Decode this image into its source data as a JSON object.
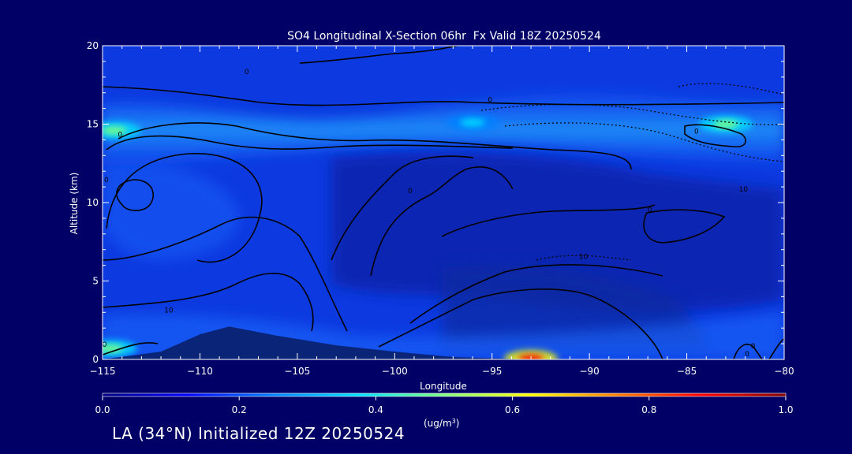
{
  "chart_data": {
    "type": "heatmap",
    "title": "SO4 Longitudinal X-Section 06hr  Fx Valid 18Z 20250524",
    "xlabel": "Longitude",
    "ylabel": "Altitude (km)",
    "xlim": [
      -115,
      -80
    ],
    "ylim": [
      0,
      20
    ],
    "x_ticks": [
      -115,
      -110,
      -105,
      -100,
      -95,
      -90,
      -85,
      -80
    ],
    "x_tick_labels": [
      "−115",
      "−110",
      "−105",
      "−100",
      "−95",
      "−90",
      "−85",
      "−80"
    ],
    "y_ticks": [
      0,
      5,
      10,
      15,
      20
    ],
    "y_tick_labels": [
      "0",
      "5",
      "10",
      "15",
      "20"
    ],
    "colorbar": {
      "min": 0.0,
      "max": 1.0,
      "ticks": [
        "0.0",
        "0.2",
        "0.4",
        "0.6",
        "0.8",
        "1.0"
      ],
      "units_label": "(ug/m",
      "units_sup": "3",
      "units_close": ")",
      "colors": [
        "#000080",
        "#0000ff",
        "#0080ff",
        "#00e0ff",
        "#80ff80",
        "#ffff00",
        "#ff8000",
        "#ff0000",
        "#800000"
      ]
    },
    "contour_labels": [
      {
        "text": "0",
        "x": -114.1,
        "y": 14.2
      },
      {
        "text": "0",
        "x": -107.6,
        "y": 18.2
      },
      {
        "text": "0",
        "x": -95.1,
        "y": 16.4
      },
      {
        "text": "0",
        "x": -84.5,
        "y": 14.4
      },
      {
        "text": "0",
        "x": -99.2,
        "y": 10.6
      },
      {
        "text": "0",
        "x": -86.9,
        "y": 9.4
      },
      {
        "text": "0",
        "x": -114.8,
        "y": 11.3
      },
      {
        "text": "10",
        "x": -82.1,
        "y": 10.7
      },
      {
        "text": "10",
        "x": -90.3,
        "y": 6.4
      },
      {
        "text": "10",
        "x": -111.6,
        "y": 3.0
      },
      {
        "text": "0",
        "x": -114.9,
        "y": 0.8
      },
      {
        "text": "0",
        "x": -81.9,
        "y": 0.2
      },
      {
        "text": "0",
        "x": -81.6,
        "y": 0.7
      }
    ],
    "terrain_profile": [
      [
        -115,
        0
      ],
      [
        -112,
        0.5
      ],
      [
        -110,
        1.6
      ],
      [
        -108.5,
        2.1
      ],
      [
        -106,
        1.5
      ],
      [
        -103,
        0.9
      ],
      [
        -100,
        0.5
      ],
      [
        -97,
        0.15
      ],
      [
        -93,
        0
      ],
      [
        -80,
        0
      ]
    ],
    "high_concentration_regions": [
      {
        "x": -114.4,
        "y": 14.6,
        "value": 0.45
      },
      {
        "x": -96,
        "y": 15.1,
        "value": 0.4
      },
      {
        "x": -83,
        "y": 15.0,
        "value": 0.5
      },
      {
        "x": -114.6,
        "y": 0.7,
        "value": 0.55
      },
      {
        "x": -93,
        "y": 0.05,
        "value": 0.85
      }
    ]
  },
  "footer": {
    "text": "LA (34°N) Initialized 12Z 20250524"
  }
}
